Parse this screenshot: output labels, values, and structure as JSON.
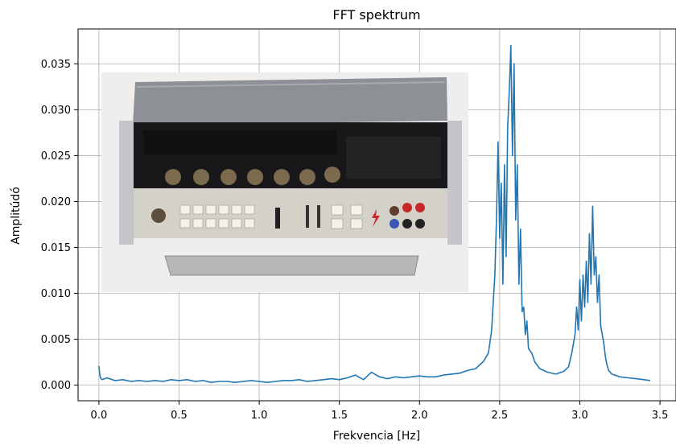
{
  "chart_data": {
    "type": "line",
    "title": "FFT spektrum",
    "xlabel": "Frekvencia [Hz]",
    "ylabel": "Amplitúdó",
    "xlim": [
      -0.13,
      3.6
    ],
    "ylim": [
      -0.0017,
      0.0388
    ],
    "xticks": [
      0.0,
      0.5,
      1.0,
      1.5,
      2.0,
      2.5,
      3.0,
      3.5
    ],
    "xtick_labels": [
      "0.0",
      "0.5",
      "1.0",
      "1.5",
      "2.0",
      "2.5",
      "3.0",
      "3.5"
    ],
    "yticks": [
      0.0,
      0.005,
      0.01,
      0.015,
      0.02,
      0.025,
      0.03,
      0.035
    ],
    "ytick_labels": [
      "0.000",
      "0.005",
      "0.010",
      "0.015",
      "0.020",
      "0.025",
      "0.030",
      "0.035"
    ],
    "grid": true,
    "series_color": "#1f77b4",
    "inset_image": "multimeter-photo",
    "series": [
      {
        "x": [
          0.0,
          0.005,
          0.01,
          0.02,
          0.05,
          0.1,
          0.15,
          0.2,
          0.25,
          0.3,
          0.35,
          0.4,
          0.45,
          0.5,
          0.55,
          0.6,
          0.65,
          0.7,
          0.75,
          0.8,
          0.85,
          0.9,
          0.95,
          1.0,
          1.05,
          1.1,
          1.15,
          1.2,
          1.25,
          1.3,
          1.35,
          1.4,
          1.45,
          1.5,
          1.55,
          1.6,
          1.65,
          1.7,
          1.75,
          1.8,
          1.85,
          1.9,
          1.95,
          2.0,
          2.05,
          2.1,
          2.15,
          2.2,
          2.25,
          2.3,
          2.35,
          2.4,
          2.43,
          2.45,
          2.47,
          2.48,
          2.49,
          2.5,
          2.51,
          2.52,
          2.53,
          2.54,
          2.55,
          2.56,
          2.57,
          2.58,
          2.59,
          2.6,
          2.61,
          2.62,
          2.63,
          2.64,
          2.65,
          2.66,
          2.67,
          2.68,
          2.7,
          2.72,
          2.75,
          2.8,
          2.85,
          2.9,
          2.93,
          2.95,
          2.97,
          2.98,
          2.99,
          3.0,
          3.01,
          3.02,
          3.03,
          3.04,
          3.05,
          3.06,
          3.07,
          3.08,
          3.09,
          3.1,
          3.11,
          3.12,
          3.13,
          3.14,
          3.15,
          3.16,
          3.17,
          3.18,
          3.2,
          3.25,
          3.3,
          3.35,
          3.4,
          3.44
        ],
        "y": [
          0.0021,
          0.0012,
          0.0008,
          0.0006,
          0.0008,
          0.0005,
          0.0006,
          0.0004,
          0.0005,
          0.0004,
          0.0005,
          0.0004,
          0.0006,
          0.0005,
          0.0006,
          0.0004,
          0.0005,
          0.0003,
          0.0004,
          0.0004,
          0.0003,
          0.0004,
          0.0005,
          0.0004,
          0.0003,
          0.0004,
          0.0005,
          0.0005,
          0.0006,
          0.0004,
          0.0005,
          0.0006,
          0.0007,
          0.0006,
          0.0008,
          0.0011,
          0.0006,
          0.0014,
          0.0009,
          0.0007,
          0.0009,
          0.0008,
          0.0009,
          0.001,
          0.0009,
          0.0009,
          0.0011,
          0.0012,
          0.0013,
          0.0016,
          0.0018,
          0.0026,
          0.0035,
          0.006,
          0.012,
          0.018,
          0.0265,
          0.016,
          0.022,
          0.011,
          0.024,
          0.014,
          0.028,
          0.032,
          0.037,
          0.025,
          0.035,
          0.018,
          0.024,
          0.011,
          0.017,
          0.008,
          0.0085,
          0.0055,
          0.007,
          0.004,
          0.0035,
          0.0025,
          0.0018,
          0.0014,
          0.0012,
          0.0015,
          0.002,
          0.0035,
          0.0055,
          0.0085,
          0.006,
          0.0115,
          0.007,
          0.012,
          0.0085,
          0.0135,
          0.009,
          0.0165,
          0.011,
          0.0195,
          0.012,
          0.014,
          0.009,
          0.012,
          0.0065,
          0.0055,
          0.0045,
          0.003,
          0.0022,
          0.0016,
          0.0012,
          0.0009,
          0.0008,
          0.0007,
          0.0006,
          0.0005
        ]
      }
    ]
  }
}
